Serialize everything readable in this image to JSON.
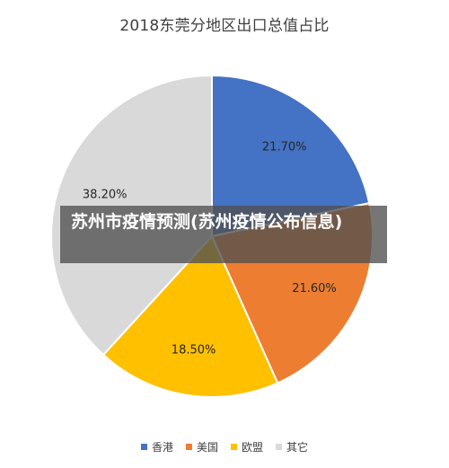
{
  "chart_data": {
    "type": "pie",
    "title": "2018东莞分地区出口总值占比",
    "categories": [
      "香港",
      "美国",
      "欧盟",
      "其它"
    ],
    "values": [
      21.7,
      21.6,
      18.5,
      38.2
    ],
    "value_labels": [
      "21.70%",
      "21.60%",
      "18.50%",
      "38.20%"
    ],
    "colors": [
      "#4472C4",
      "#ED7D31",
      "#FFC000",
      "#D9D9D9"
    ],
    "start_angle_deg": 0,
    "direction": "clockwise",
    "legend_position": "bottom",
    "slice_border_color": "#ffffff"
  },
  "overlay": {
    "text": "苏州市疫情预测(苏州疫情公布信息)"
  }
}
